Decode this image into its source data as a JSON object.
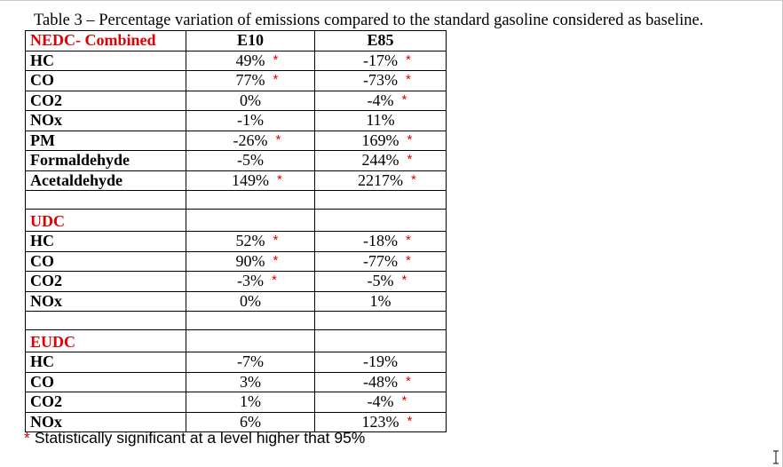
{
  "caption": "Table 3 – Percentage variation of emissions compared to the standard gasoline considered as baseline.",
  "columns": [
    "E10",
    "E85"
  ],
  "sections": [
    {
      "title": "NEDC- Combined",
      "rows": [
        {
          "pollutant": "HC",
          "e10": "49%",
          "e10_sig": "*",
          "e85": "-17%",
          "e85_sig": "*"
        },
        {
          "pollutant": "CO",
          "e10": "77%",
          "e10_sig": "*",
          "e85": "-73%",
          "e85_sig": "*"
        },
        {
          "pollutant": "CO2",
          "e10": "0%",
          "e10_sig": "",
          "e85": "-4%",
          "e85_sig": "*"
        },
        {
          "pollutant": "NOx",
          "e10": "-1%",
          "e10_sig": "",
          "e85": "11%",
          "e85_sig": ""
        },
        {
          "pollutant": "PM",
          "e10": "-26%",
          "e10_sig": "*",
          "e85": "169%",
          "e85_sig": "*"
        },
        {
          "pollutant": "Formaldehyde",
          "e10": "-5%",
          "e10_sig": "",
          "e85": "244%",
          "e85_sig": "*"
        },
        {
          "pollutant": "Acetaldehyde",
          "e10": "149%",
          "e10_sig": "*",
          "e85": "2217%",
          "e85_sig": "*"
        }
      ]
    },
    {
      "title": "UDC",
      "rows": [
        {
          "pollutant": "HC",
          "e10": "52%",
          "e10_sig": "*",
          "e85": "-18%",
          "e85_sig": "*"
        },
        {
          "pollutant": "CO",
          "e10": "90%",
          "e10_sig": "*",
          "e85": "-77%",
          "e85_sig": "*"
        },
        {
          "pollutant": "CO2",
          "e10": "-3%",
          "e10_sig": "*",
          "e85": "-5%",
          "e85_sig": "*"
        },
        {
          "pollutant": "NOx",
          "e10": "0%",
          "e10_sig": "",
          "e85": "1%",
          "e85_sig": ""
        }
      ]
    },
    {
      "title": "EUDC",
      "rows": [
        {
          "pollutant": "HC",
          "e10": "-7%",
          "e10_sig": "",
          "e85": "-19%",
          "e85_sig": ""
        },
        {
          "pollutant": "CO",
          "e10": "3%",
          "e10_sig": "",
          "e85": "-48%",
          "e85_sig": "*"
        },
        {
          "pollutant": "CO2",
          "e10": "1%",
          "e10_sig": "",
          "e85": "-4%",
          "e85_sig": "*"
        },
        {
          "pollutant": "NOx",
          "e10": "6%",
          "e10_sig": "",
          "e85": "123%",
          "e85_sig": "*"
        }
      ]
    }
  ],
  "footnote": {
    "marker": "*",
    "text": "Statistically significant at a level higher that 95%"
  },
  "colors": {
    "highlight": "#e00000",
    "text": "#000000"
  },
  "icons": {
    "cursor": "text-cursor-icon"
  }
}
